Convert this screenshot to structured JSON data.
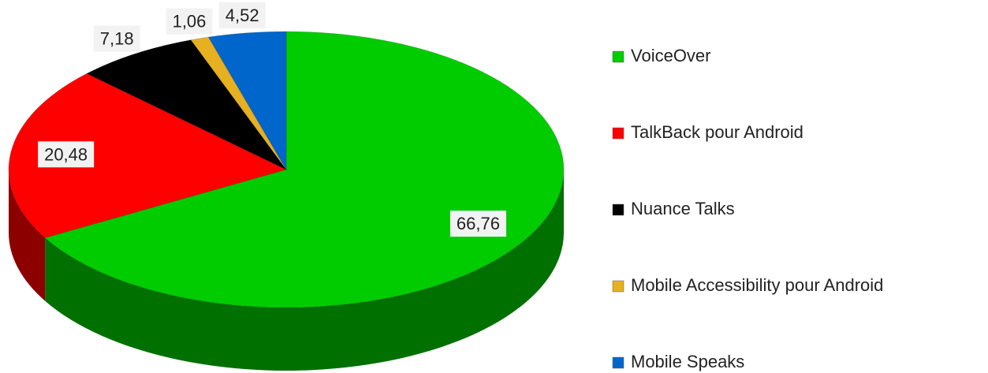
{
  "chart_data": {
    "type": "pie",
    "categories": [
      "VoiceOver",
      "TalkBack pour Android",
      "Nuance Talks",
      "Mobile Accessibility pour Android",
      "Mobile Speaks"
    ],
    "values": [
      66.76,
      20.48,
      7.18,
      1.06,
      4.52
    ],
    "value_labels": [
      "66,76",
      "20,48",
      "7,18",
      "1,06",
      "4,52"
    ],
    "colors": [
      "#00cc00",
      "#ff0000",
      "#000000",
      "#e6b020",
      "#0066cc"
    ],
    "legend": "right"
  }
}
